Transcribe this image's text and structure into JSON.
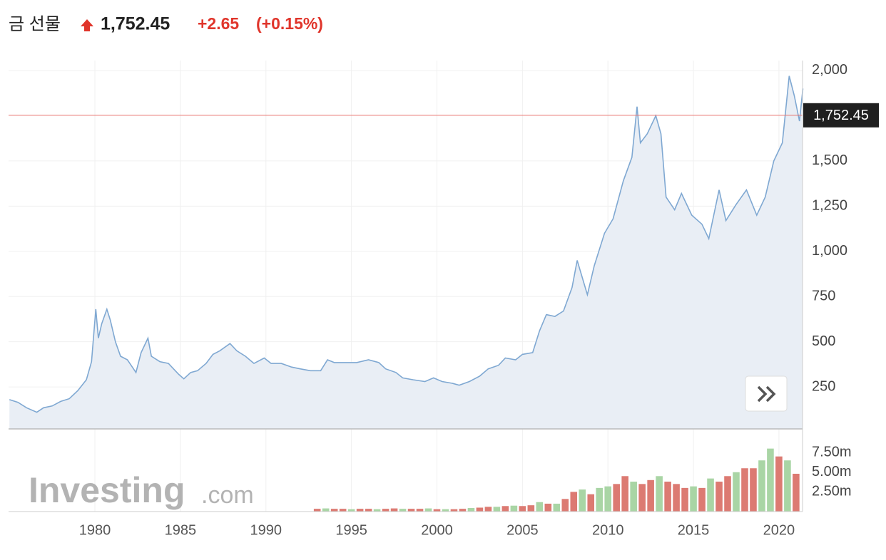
{
  "header": {
    "name": "금 선물",
    "change": "+2.65",
    "change_pct": "(+0.15%)"
  },
  "logo": [
    "Investing",
    ".com"
  ],
  "chart_data": [
    {
      "type": "line",
      "x": [
        1975.0,
        1975.5,
        1976.0,
        1976.6,
        1977.0,
        1977.5,
        1978.0,
        1978.5,
        1979.0,
        1979.5,
        1979.8,
        1980.05,
        1980.2,
        1980.4,
        1980.7,
        1980.9,
        1981.2,
        1981.5,
        1981.9,
        1982.4,
        1982.7,
        1983.1,
        1983.3,
        1983.8,
        1984.3,
        1984.9,
        1985.2,
        1985.6,
        1986.0,
        1986.5,
        1986.9,
        1987.3,
        1987.9,
        1988.3,
        1988.8,
        1989.3,
        1989.9,
        1990.3,
        1990.9,
        1991.5,
        1992.0,
        1992.6,
        1993.2,
        1993.6,
        1994.0,
        1994.6,
        1995.3,
        1996.0,
        1996.6,
        1997.0,
        1997.6,
        1998.0,
        1998.6,
        1999.3,
        1999.8,
        2000.3,
        2000.9,
        2001.3,
        2001.9,
        2002.5,
        2003.0,
        2003.6,
        2004.0,
        2004.6,
        2005.0,
        2005.6,
        2006.0,
        2006.4,
        2006.9,
        2007.4,
        2007.9,
        2008.2,
        2008.8,
        2009.2,
        2009.8,
        2010.3,
        2010.9,
        2011.4,
        2011.7,
        2011.9,
        2012.3,
        2012.8,
        2013.1,
        2013.4,
        2013.9,
        2014.3,
        2014.9,
        2015.5,
        2015.9,
        2016.5,
        2016.9,
        2017.5,
        2018.1,
        2018.7,
        2019.2,
        2019.7,
        2020.2,
        2020.6,
        2020.9,
        2021.2,
        2021.4
      ],
      "series": [
        {
          "color": "#7fa8d2",
          "values": [
            180,
            165,
            135,
            110,
            135,
            145,
            170,
            185,
            230,
            290,
            390,
            680,
            520,
            600,
            680,
            620,
            500,
            420,
            400,
            330,
            440,
            520,
            420,
            390,
            380,
            320,
            295,
            330,
            340,
            380,
            430,
            450,
            490,
            450,
            420,
            380,
            410,
            380,
            380,
            360,
            350,
            340,
            340,
            400,
            385,
            385,
            385,
            400,
            385,
            350,
            330,
            300,
            290,
            280,
            300,
            280,
            270,
            260,
            280,
            310,
            350,
            370,
            410,
            400,
            430,
            440,
            560,
            650,
            640,
            670,
            800,
            950,
            760,
            920,
            1100,
            1180,
            1390,
            1520,
            1800,
            1600,
            1650,
            1750,
            1650,
            1300,
            1230,
            1320,
            1200,
            1150,
            1070,
            1340,
            1170,
            1260,
            1340,
            1200,
            1300,
            1500,
            1600,
            1970,
            1860,
            1720,
            1900
          ]
        }
      ],
      "area_color": "#e9eef5",
      "xlim": [
        1974.95,
        2021.38
      ],
      "ylim": [
        18,
        2055
      ],
      "yticks": [
        250,
        500,
        750,
        {
          "value": 1000,
          "label": "1,000"
        },
        {
          "value": 1250,
          "label": "1,250"
        },
        {
          "value": 1500,
          "label": "1,500"
        },
        {
          "value": 2000,
          "label": "2,000"
        }
      ],
      "current_price": {
        "value": 1752.45,
        "label": "1,752.45"
      },
      "current_price_color": "#e8716b",
      "grid": true
    },
    {
      "type": "bar",
      "x": [
        1993.0,
        1993.5,
        1994.0,
        1994.5,
        1995.0,
        1995.5,
        1996.0,
        1996.5,
        1997.0,
        1997.5,
        1998.0,
        1998.5,
        1999.0,
        1999.5,
        2000.0,
        2000.5,
        2001.0,
        2001.5,
        2002.0,
        2002.5,
        2003.0,
        2003.5,
        2004.0,
        2004.5,
        2005.0,
        2005.5,
        2006.0,
        2006.5,
        2007.0,
        2007.5,
        2008.0,
        2008.5,
        2009.0,
        2009.5,
        2010.0,
        2010.5,
        2011.0,
        2011.5,
        2012.0,
        2012.5,
        2013.0,
        2013.5,
        2014.0,
        2014.5,
        2015.0,
        2015.5,
        2016.0,
        2016.5,
        2017.0,
        2017.5,
        2018.0,
        2018.5,
        2019.0,
        2019.5,
        2020.0,
        2020.5,
        2021.0
      ],
      "values": [
        0.35,
        0.4,
        0.35,
        0.35,
        0.3,
        0.35,
        0.35,
        0.3,
        0.35,
        0.4,
        0.35,
        0.35,
        0.35,
        0.4,
        0.3,
        0.3,
        0.3,
        0.35,
        0.45,
        0.5,
        0.6,
        0.6,
        0.7,
        0.75,
        0.7,
        0.8,
        1.2,
        1.0,
        1.0,
        1.6,
        2.5,
        2.8,
        2.2,
        3.0,
        3.2,
        3.5,
        4.5,
        3.8,
        3.5,
        4.0,
        4.5,
        3.8,
        3.5,
        3.0,
        3.2,
        3.0,
        4.2,
        3.8,
        4.5,
        5.0,
        5.5,
        5.5,
        6.5,
        8.0,
        7.0,
        6.5,
        4.8
      ],
      "colors": [
        "#dc7a72",
        "#a9d5a5",
        "#dc7a72",
        "#dc7a72",
        "#a9d5a5",
        "#dc7a72",
        "#dc7a72",
        "#a9d5a5",
        "#dc7a72",
        "#dc7a72",
        "#a9d5a5",
        "#dc7a72",
        "#dc7a72",
        "#a9d5a5",
        "#dc7a72",
        "#a9d5a5",
        "#dc7a72",
        "#dc7a72",
        "#a9d5a5",
        "#dc7a72",
        "#dc7a72",
        "#a9d5a5",
        "#dc7a72",
        "#a9d5a5",
        "#dc7a72",
        "#dc7a72",
        "#a9d5a5",
        "#dc7a72",
        "#a9d5a5",
        "#dc7a72",
        "#dc7a72",
        "#a9d5a5",
        "#dc7a72",
        "#a9d5a5",
        "#a9d5a5",
        "#dc7a72",
        "#dc7a72",
        "#a9d5a5",
        "#dc7a72",
        "#dc7a72",
        "#a9d5a5",
        "#dc7a72",
        "#dc7a72",
        "#dc7a72",
        "#a9d5a5",
        "#dc7a72",
        "#a9d5a5",
        "#dc7a72",
        "#dc7a72",
        "#a9d5a5",
        "#dc7a72",
        "#dc7a72",
        "#a9d5a5",
        "#a9d5a5",
        "#dc7a72",
        "#a9d5a5",
        "#dc7a72"
      ],
      "xlim": [
        1974.95,
        2021.38
      ],
      "ylim": [
        0,
        10.5
      ],
      "xticks": [
        1980,
        1985,
        1990,
        1995,
        2000,
        2005,
        2010,
        2015,
        2020
      ],
      "yticks": [
        {
          "value": 2.5,
          "label": "2.50m"
        },
        {
          "value": 5,
          "label": "5.00m"
        },
        {
          "value": 7.5,
          "label": "7.50m"
        }
      ]
    }
  ]
}
